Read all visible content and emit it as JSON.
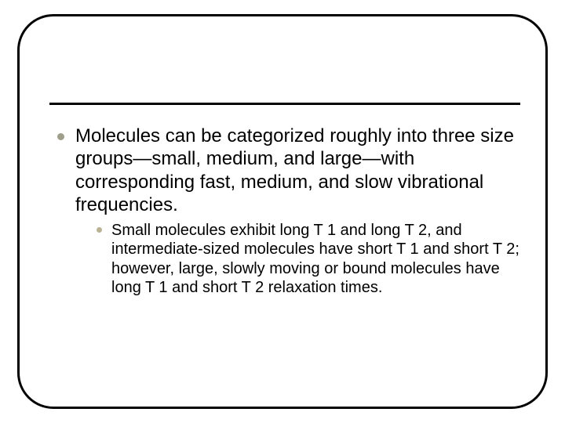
{
  "slide": {
    "frame_border_color": "#000000",
    "frame_border_width": 3,
    "frame_border_radius": 46,
    "rule_color": "#000000",
    "rule_width": 3,
    "background_color": "#ffffff",
    "main_bullet": {
      "color": "#9e9e8b",
      "size": 9,
      "shape": "circle"
    },
    "sub_bullet": {
      "color": "#b9b294",
      "size": 7,
      "shape": "circle"
    },
    "main_fontsize": 24,
    "sub_fontsize": 20,
    "text_color": "#000000",
    "items": [
      {
        "text": "Molecules can be categorized roughly into three size groups—small, medium, and large—with corresponding fast, medium, and slow vibrational frequencies.",
        "sub": [
          "Small molecules exhibit long T 1 and long T 2, and intermediate-sized molecules have short T 1 and short T 2; however, large, slowly moving or bound molecules have long T 1 and short T 2 relaxation times."
        ]
      }
    ]
  }
}
